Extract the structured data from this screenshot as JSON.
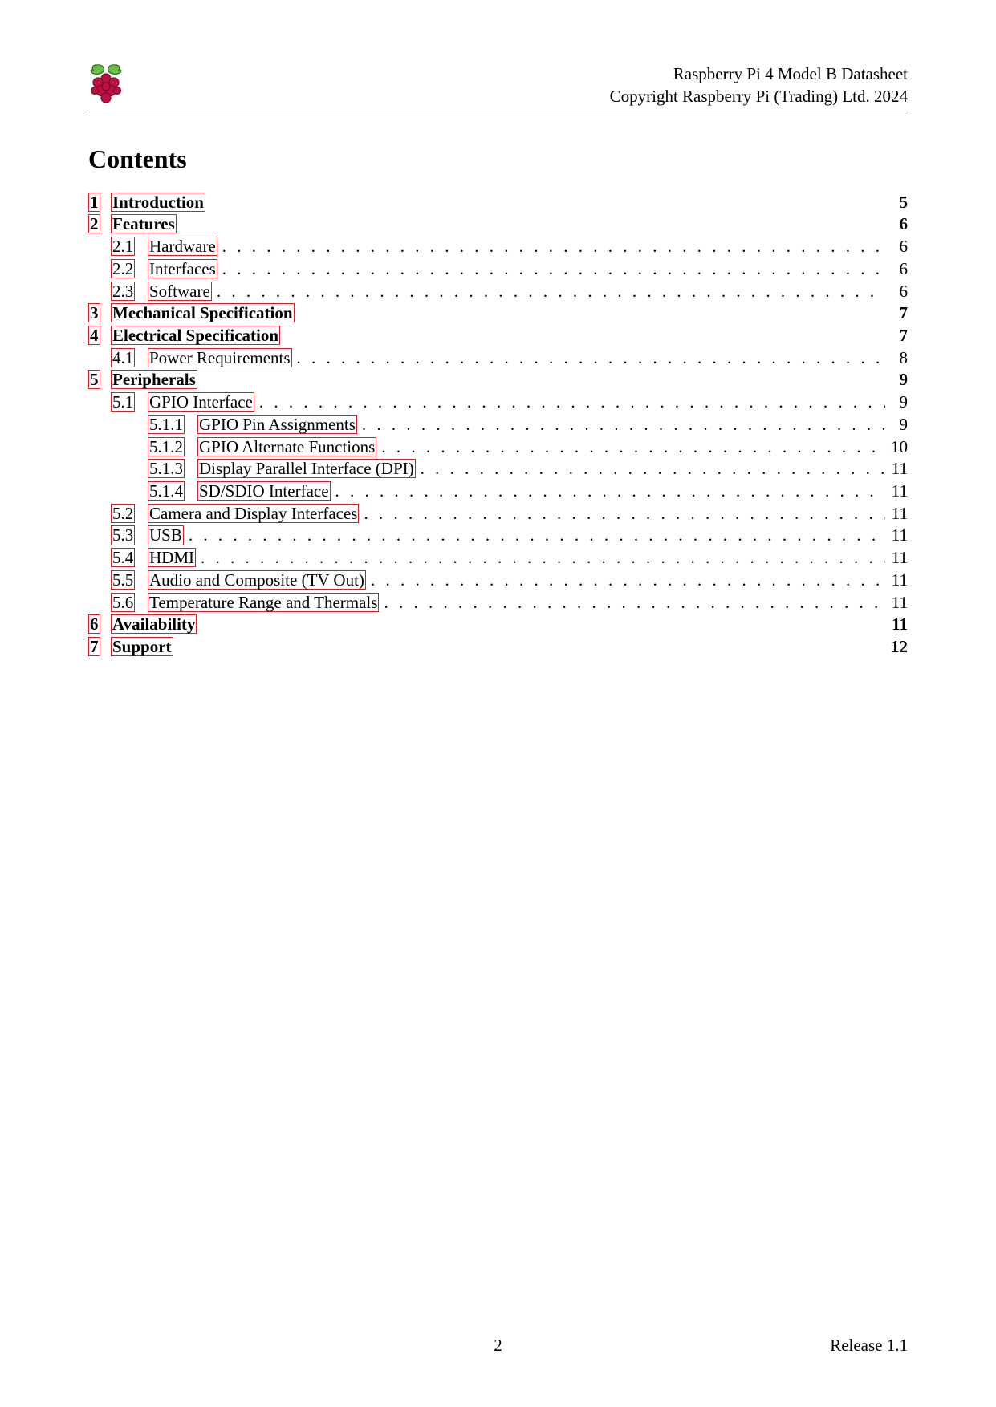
{
  "header": {
    "line1": "Raspberry Pi 4 Model B Datasheet",
    "line2": "Copyright Raspberry Pi (Trading) Ltd. 2024"
  },
  "title": "Contents",
  "logo": {
    "leaf_fill": "#6cc04a",
    "leaf_stroke": "#2a6a1f",
    "berry_fill": "#bc1142",
    "berry_stroke": "#7a0c2d"
  },
  "link_box_color": "#d0202a",
  "font_family": "Times New Roman",
  "text_color": "#000000",
  "background_color": "#ffffff",
  "toc": [
    {
      "level": 1,
      "num": "1",
      "label": "Introduction",
      "page": "5",
      "boxed": true,
      "dots": false,
      "section_gap": true
    },
    {
      "level": 1,
      "num": "2",
      "label": "Features",
      "page": "6",
      "boxed": true,
      "dots": false,
      "section_gap": true
    },
    {
      "level": 2,
      "num": "2.1",
      "label": "Hardware",
      "page": "6",
      "boxed": true,
      "dots": true
    },
    {
      "level": 2,
      "num": "2.2",
      "label": "Interfaces",
      "page": "6",
      "boxed": true,
      "dots": true
    },
    {
      "level": 2,
      "num": "2.3",
      "label": "Software",
      "page": "6",
      "boxed": true,
      "dots": true
    },
    {
      "level": 1,
      "num": "3",
      "label": "Mechanical Specification",
      "page": "7",
      "boxed": true,
      "dots": false,
      "section_gap": true
    },
    {
      "level": 1,
      "num": "4",
      "label": "Electrical Specification",
      "page": "7",
      "boxed": true,
      "dots": false,
      "section_gap": true
    },
    {
      "level": 2,
      "num": "4.1",
      "label": "Power Requirements",
      "page": "8",
      "boxed": true,
      "dots": true
    },
    {
      "level": 1,
      "num": "5",
      "label": "Peripherals",
      "page": "9",
      "boxed": true,
      "dots": false,
      "section_gap": true
    },
    {
      "level": 2,
      "num": "5.1",
      "label": "GPIO Interface",
      "page": "9",
      "boxed": true,
      "dots": true
    },
    {
      "level": 3,
      "num": "5.1.1",
      "label": "GPIO Pin Assignments",
      "page": "9",
      "boxed": true,
      "dots": true
    },
    {
      "level": 3,
      "num": "5.1.2",
      "label": "GPIO Alternate Functions",
      "page": "10",
      "boxed": true,
      "dots": true
    },
    {
      "level": 3,
      "num": "5.1.3",
      "label": "Display Parallel Interface (DPI)",
      "page": "11",
      "boxed": true,
      "dots": true
    },
    {
      "level": 3,
      "num": "5.1.4",
      "label": "SD/SDIO Interface",
      "page": "11",
      "boxed": true,
      "dots": true
    },
    {
      "level": 2,
      "num": "5.2",
      "label": "Camera and Display Interfaces",
      "page": "11",
      "boxed": true,
      "dots": true
    },
    {
      "level": 2,
      "num": "5.3",
      "label": "USB",
      "page": "11",
      "boxed": true,
      "dots": true
    },
    {
      "level": 2,
      "num": "5.4",
      "label": "HDMI",
      "page": "11",
      "boxed": true,
      "dots": true
    },
    {
      "level": 2,
      "num": "5.5",
      "label": "Audio and Composite (TV Out)",
      "page": "11",
      "boxed": true,
      "dots": true
    },
    {
      "level": 2,
      "num": "5.6",
      "label": "Temperature Range and Thermals",
      "page": "11",
      "boxed": true,
      "dots": true
    },
    {
      "level": 1,
      "num": "6",
      "label": "Availability",
      "page": "11",
      "boxed": true,
      "dots": false,
      "section_gap": true
    },
    {
      "level": 1,
      "num": "7",
      "label": "Support",
      "page": "12",
      "boxed": true,
      "dots": false,
      "section_gap": true
    }
  ],
  "footer": {
    "page_number": "2",
    "release": "Release 1.1"
  }
}
